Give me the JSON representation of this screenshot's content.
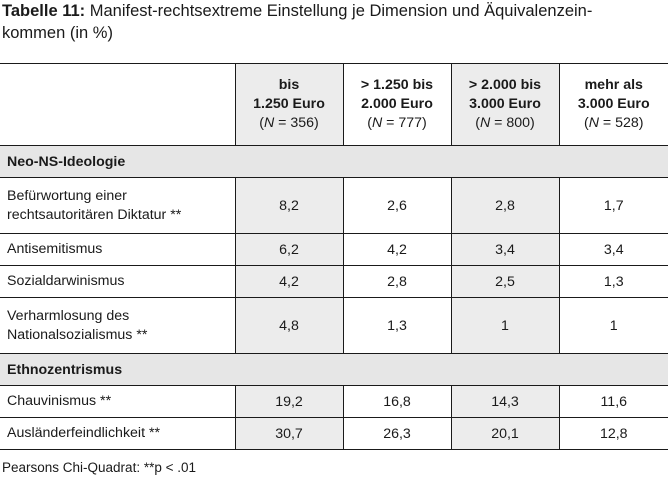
{
  "caption": {
    "label": "Tabelle 11:",
    "text": "Manifest-rechtsextreme Einstellung je Dimension und Äquivalenzein-",
    "text_line2": "kommen (in %)"
  },
  "columns": [
    {
      "line1": "bis",
      "line2": "1.250 Euro",
      "n_label": "N",
      "n_value": " = 356)"
    },
    {
      "line1": "> 1.250 bis",
      "line2": "2.000 Euro",
      "n_label": "N",
      "n_value": " = 777)"
    },
    {
      "line1": "> 2.000 bis",
      "line2": "3.000 Euro",
      "n_label": "N",
      "n_value": " = 800)"
    },
    {
      "line1": "mehr als",
      "line2": "3.000 Euro",
      "n_label": "N",
      "n_value": " = 528)"
    }
  ],
  "sections": [
    {
      "title": "Neo-NS-Ideologie",
      "rows": [
        {
          "label": "Befürwortung einer",
          "label2": "rechtsautoritären Diktatur **",
          "values": [
            "8,2",
            "2,6",
            "2,8",
            "1,7"
          ]
        },
        {
          "label": "Antisemitismus",
          "label2": "",
          "values": [
            "6,2",
            "4,2",
            "3,4",
            "3,4"
          ]
        },
        {
          "label": "Sozialdarwinismus",
          "label2": "",
          "values": [
            "4,2",
            "2,8",
            "2,5",
            "1,3"
          ]
        },
        {
          "label": "Verharmlosung des",
          "label2": "Nationalsozialismus **",
          "values": [
            "4,8",
            "1,3",
            "1",
            "1"
          ]
        }
      ]
    },
    {
      "title": "Ethnozentrismus",
      "rows": [
        {
          "label": "Chauvinismus **",
          "label2": "",
          "values": [
            "19,2",
            "16,8",
            "14,3",
            "11,6"
          ]
        },
        {
          "label": "Ausländerfeindlichkeit **",
          "label2": "",
          "values": [
            "30,7",
            "26,3",
            "20,1",
            "12,8"
          ]
        }
      ]
    }
  ],
  "footnote": "Pearsons Chi-Quadrat: **p < .01"
}
